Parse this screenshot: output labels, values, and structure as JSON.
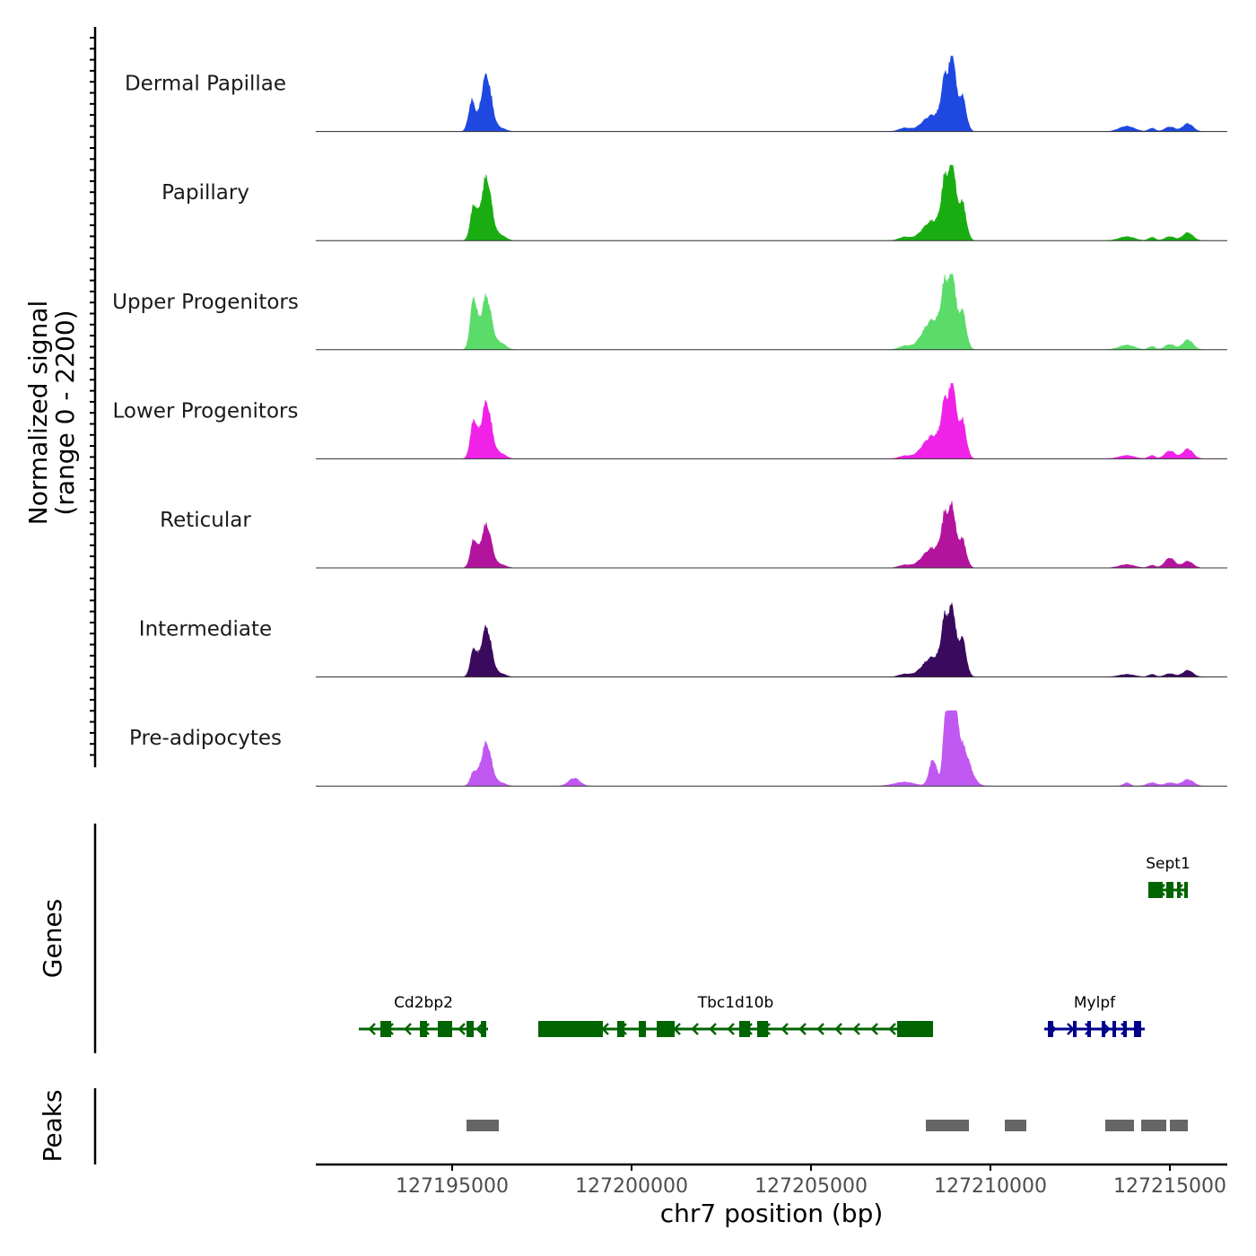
{
  "chart_data": {
    "type": "area",
    "genomic_region": "chr7",
    "xlabel": "chr7 position (bp)",
    "ylabel_line1": "Normalized signal",
    "ylabel_line2": "(range 0 - 2200)",
    "signal_range": [
      0,
      2200
    ],
    "xlim": [
      127191200,
      127216600
    ],
    "x_ticks": [
      127195000,
      127200000,
      127205000,
      127210000,
      127215000
    ],
    "x_tick_labels": [
      "127195000",
      "127200000",
      "127205000",
      "127210000",
      "127215000"
    ],
    "peak_shape_widths_bp": [
      130,
      200,
      200,
      220,
      400,
      150,
      110,
      160,
      300
    ],
    "tracks": [
      {
        "name": "Dermal Papillae",
        "color": "#1e48e0",
        "peaks": [
          {
            "pos": 127195550,
            "h": 0.45
          },
          {
            "pos": 127195950,
            "h": 0.85
          },
          {
            "pos": 127196350,
            "h": 0.05
          },
          {
            "pos": 127207600,
            "h": 0.05
          },
          {
            "pos": 127208400,
            "h": 0.25
          },
          {
            "pos": 127208750,
            "h": 0.75
          },
          {
            "pos": 127208950,
            "h": 1.0
          },
          {
            "pos": 127209200,
            "h": 0.55
          },
          {
            "pos": 127213800,
            "h": 0.08
          },
          {
            "pos": 127214500,
            "h": 0.05
          },
          {
            "pos": 127215000,
            "h": 0.07
          },
          {
            "pos": 127215500,
            "h": 0.12
          }
        ]
      },
      {
        "name": "Papillary",
        "color": "#1aad12",
        "peaks": [
          {
            "pos": 127195600,
            "h": 0.5
          },
          {
            "pos": 127195950,
            "h": 0.95
          },
          {
            "pos": 127196350,
            "h": 0.08
          },
          {
            "pos": 127207600,
            "h": 0.05
          },
          {
            "pos": 127208400,
            "h": 0.3
          },
          {
            "pos": 127208750,
            "h": 0.85
          },
          {
            "pos": 127208950,
            "h": 1.0
          },
          {
            "pos": 127209200,
            "h": 0.6
          },
          {
            "pos": 127213800,
            "h": 0.06
          },
          {
            "pos": 127214500,
            "h": 0.05
          },
          {
            "pos": 127215000,
            "h": 0.06
          },
          {
            "pos": 127215500,
            "h": 0.12
          }
        ]
      },
      {
        "name": "Upper Progenitors",
        "color": "#5bdc6a",
        "peaks": [
          {
            "pos": 127195600,
            "h": 0.75
          },
          {
            "pos": 127195950,
            "h": 0.8
          },
          {
            "pos": 127196350,
            "h": 0.1
          },
          {
            "pos": 127207600,
            "h": 0.05
          },
          {
            "pos": 127208400,
            "h": 0.45
          },
          {
            "pos": 127208750,
            "h": 0.85
          },
          {
            "pos": 127208950,
            "h": 0.95
          },
          {
            "pos": 127209200,
            "h": 0.6
          },
          {
            "pos": 127213800,
            "h": 0.07
          },
          {
            "pos": 127214500,
            "h": 0.05
          },
          {
            "pos": 127215000,
            "h": 0.08
          },
          {
            "pos": 127215500,
            "h": 0.15
          }
        ]
      },
      {
        "name": "Lower Progenitors",
        "color": "#f022e8",
        "peaks": [
          {
            "pos": 127195600,
            "h": 0.55
          },
          {
            "pos": 127195950,
            "h": 0.85
          },
          {
            "pos": 127196350,
            "h": 0.08
          },
          {
            "pos": 127207600,
            "h": 0.04
          },
          {
            "pos": 127208400,
            "h": 0.35
          },
          {
            "pos": 127208750,
            "h": 0.75
          },
          {
            "pos": 127208950,
            "h": 1.0
          },
          {
            "pos": 127209200,
            "h": 0.6
          },
          {
            "pos": 127213800,
            "h": 0.05
          },
          {
            "pos": 127214500,
            "h": 0.05
          },
          {
            "pos": 127215000,
            "h": 0.12
          },
          {
            "pos": 127215500,
            "h": 0.15
          }
        ]
      },
      {
        "name": "Reticular",
        "color": "#b3149e",
        "peaks": [
          {
            "pos": 127195600,
            "h": 0.4
          },
          {
            "pos": 127195950,
            "h": 0.65
          },
          {
            "pos": 127196350,
            "h": 0.05
          },
          {
            "pos": 127207600,
            "h": 0.04
          },
          {
            "pos": 127208400,
            "h": 0.3
          },
          {
            "pos": 127208750,
            "h": 0.7
          },
          {
            "pos": 127208950,
            "h": 0.75
          },
          {
            "pos": 127209200,
            "h": 0.45
          },
          {
            "pos": 127213800,
            "h": 0.05
          },
          {
            "pos": 127214500,
            "h": 0.04
          },
          {
            "pos": 127215000,
            "h": 0.15
          },
          {
            "pos": 127215500,
            "h": 0.1
          }
        ]
      },
      {
        "name": "Intermediate",
        "color": "#3a0a5e",
        "peaks": [
          {
            "pos": 127195600,
            "h": 0.4
          },
          {
            "pos": 127195950,
            "h": 0.75
          },
          {
            "pos": 127196350,
            "h": 0.05
          },
          {
            "pos": 127207600,
            "h": 0.04
          },
          {
            "pos": 127208400,
            "h": 0.3
          },
          {
            "pos": 127208750,
            "h": 0.8
          },
          {
            "pos": 127208950,
            "h": 0.85
          },
          {
            "pos": 127209200,
            "h": 0.6
          },
          {
            "pos": 127213800,
            "h": 0.04
          },
          {
            "pos": 127214500,
            "h": 0.04
          },
          {
            "pos": 127215000,
            "h": 0.05
          },
          {
            "pos": 127215500,
            "h": 0.1
          }
        ]
      },
      {
        "name": "Pre-adipocytes",
        "color": "#c158f2",
        "peaks": [
          {
            "pos": 127195600,
            "h": 0.2
          },
          {
            "pos": 127195950,
            "h": 0.65
          },
          {
            "pos": 127196350,
            "h": 0.05
          },
          {
            "pos": 127198400,
            "h": 0.12
          },
          {
            "pos": 127207600,
            "h": 0.06
          },
          {
            "pos": 127208400,
            "h": 0.4
          },
          {
            "pos": 127208750,
            "h": 0.85
          },
          {
            "pos": 127208950,
            "h": 1.0
          },
          {
            "pos": 127209200,
            "h": 0.6
          },
          {
            "pos": 127213800,
            "h": 0.05
          },
          {
            "pos": 127214500,
            "h": 0.05
          },
          {
            "pos": 127215000,
            "h": 0.05
          },
          {
            "pos": 127215500,
            "h": 0.1
          }
        ]
      }
    ],
    "genes_title": "Genes",
    "genes": [
      {
        "name": "Cd2bp2",
        "start": 127192400,
        "end": 127196000,
        "strand": "-",
        "color": "#006400",
        "row": 2,
        "exons": [
          [
            127193000,
            127193300
          ],
          [
            127194100,
            127194300
          ],
          [
            127194600,
            127195000
          ],
          [
            127195400,
            127195600
          ],
          [
            127195800,
            127195950
          ]
        ]
      },
      {
        "name": "Tbc1d10b",
        "start": 127197400,
        "end": 127208400,
        "strand": "-",
        "color": "#006400",
        "row": 2,
        "exons": [
          [
            127197400,
            127199200
          ],
          [
            127199600,
            127199800
          ],
          [
            127200200,
            127200400
          ],
          [
            127200700,
            127201200
          ],
          [
            127203000,
            127203300
          ],
          [
            127203500,
            127203800
          ],
          [
            127207400,
            127208400
          ]
        ]
      },
      {
        "name": "Mylpf",
        "start": 127211500,
        "end": 127214300,
        "strand": "+",
        "color": "#00008b",
        "row": 2,
        "exons": [
          [
            127211600,
            127211750
          ],
          [
            127212300,
            127212400
          ],
          [
            127212700,
            127212800
          ],
          [
            127213100,
            127213200
          ],
          [
            127213400,
            127213500
          ],
          [
            127213700,
            127213800
          ],
          [
            127214000,
            127214200
          ]
        ]
      },
      {
        "name": "Sept1",
        "start": 127214400,
        "end": 127215500,
        "strand": "-",
        "color": "#006400",
        "row": 1,
        "exons": [
          [
            127214400,
            127214800
          ],
          [
            127214900,
            127215100
          ],
          [
            127215200,
            127215300
          ],
          [
            127215400,
            127215500
          ]
        ]
      }
    ],
    "peaks_title": "Peaks",
    "peak_color": "#666666",
    "peak_regions": [
      [
        127195400,
        127196300
      ],
      [
        127208200,
        127209400
      ],
      [
        127210400,
        127211000
      ],
      [
        127213200,
        127214000
      ],
      [
        127214200,
        127214900
      ],
      [
        127215000,
        127215500
      ]
    ]
  }
}
